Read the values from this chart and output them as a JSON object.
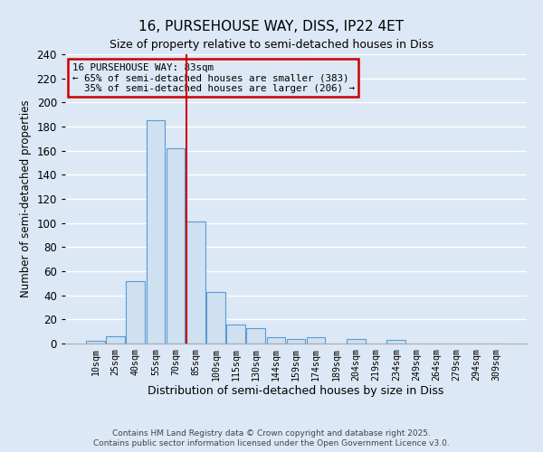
{
  "title": "16, PURSEHOUSE WAY, DISS, IP22 4ET",
  "subtitle": "Size of property relative to semi-detached houses in Diss",
  "xlabel": "Distribution of semi-detached houses by size in Diss",
  "ylabel": "Number of semi-detached properties",
  "categories": [
    "10sqm",
    "25sqm",
    "40sqm",
    "55sqm",
    "70sqm",
    "85sqm",
    "100sqm",
    "115sqm",
    "130sqm",
    "144sqm",
    "159sqm",
    "174sqm",
    "189sqm",
    "204sqm",
    "219sqm",
    "234sqm",
    "249sqm",
    "264sqm",
    "279sqm",
    "294sqm",
    "309sqm"
  ],
  "values": [
    2,
    6,
    52,
    185,
    162,
    101,
    43,
    16,
    13,
    5,
    4,
    5,
    0,
    4,
    0,
    3,
    0,
    0,
    0,
    0,
    0
  ],
  "property_name": "16 PURSEHOUSE WAY: 83sqm",
  "pct_smaller": 65,
  "n_smaller": 383,
  "pct_larger": 35,
  "n_larger": 206,
  "vline_bin_index": 5,
  "bar_face_color": "#cfe0f0",
  "bar_edge_color": "#5b9bd5",
  "vline_color": "#cc0000",
  "box_edge_color": "#cc0000",
  "background_color": "#dce8f5",
  "grid_color": "#ffffff",
  "ylim": [
    0,
    240
  ],
  "yticks": [
    0,
    20,
    40,
    60,
    80,
    100,
    120,
    140,
    160,
    180,
    200,
    220,
    240
  ],
  "title_fontsize": 11,
  "subtitle_fontsize": 9,
  "footnote1": "Contains HM Land Registry data © Crown copyright and database right 2025.",
  "footnote2": "Contains public sector information licensed under the Open Government Licence v3.0."
}
